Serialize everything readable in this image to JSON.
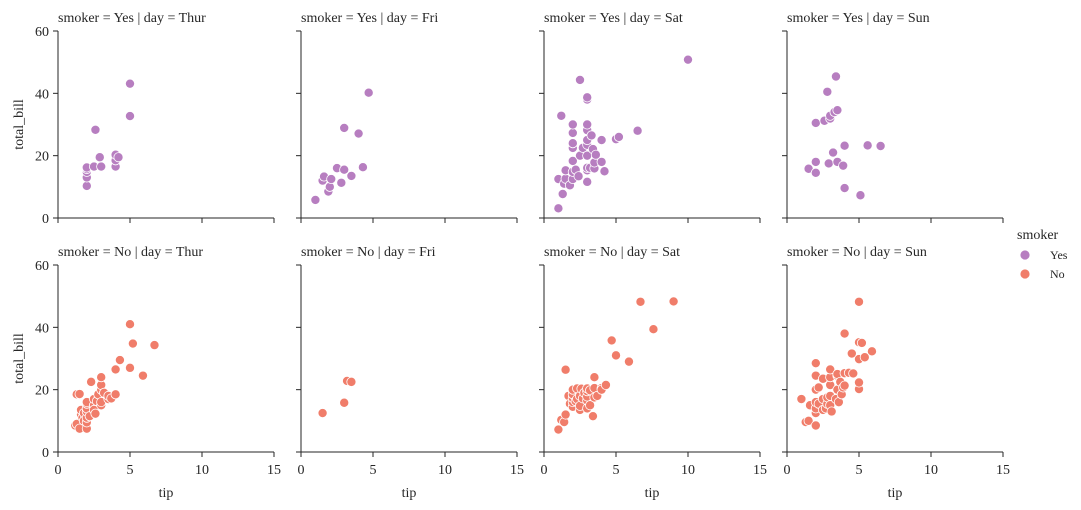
{
  "chart_data": {
    "type": "scatter",
    "layout": "facet-grid",
    "xlabel": "tip",
    "ylabel": "total_bill",
    "xlim": [
      0,
      15
    ],
    "ylim": [
      0,
      60
    ],
    "xticks": [
      0,
      5,
      10,
      15
    ],
    "yticks": [
      0,
      20,
      40,
      60
    ],
    "grid": false,
    "legend": {
      "title": "smoker",
      "placement": "right",
      "entries": [
        {
          "label": "Yes",
          "color": "#b77ec0"
        },
        {
          "label": "No",
          "color": "#f07d6a"
        }
      ]
    },
    "panels": [
      {
        "title": "smoker = Yes | day = Thur",
        "color": "#b77ec0",
        "points": [
          [
            2,
            10.3
          ],
          [
            2,
            13
          ],
          [
            2,
            14.8
          ],
          [
            2,
            15.7
          ],
          [
            2,
            16.2
          ],
          [
            2.5,
            16.5
          ],
          [
            2.6,
            28.3
          ],
          [
            3,
            16.5
          ],
          [
            2.9,
            19.5
          ],
          [
            4,
            16.5
          ],
          [
            4,
            18.5
          ],
          [
            4,
            20.3
          ],
          [
            4.2,
            19.5
          ],
          [
            5,
            32.7
          ],
          [
            5,
            43.1
          ]
        ]
      },
      {
        "title": "smoker = Yes | day = Fri",
        "color": "#b77ec0",
        "points": [
          [
            1,
            5.8
          ],
          [
            1.5,
            12
          ],
          [
            1.6,
            13.3
          ],
          [
            1.9,
            8.5
          ],
          [
            2,
            10
          ],
          [
            2.1,
            12.5
          ],
          [
            2.5,
            16
          ],
          [
            2.8,
            11.3
          ],
          [
            3,
            15.5
          ],
          [
            3,
            28.9
          ],
          [
            3.5,
            13.5
          ],
          [
            4,
            27.1
          ],
          [
            4.3,
            16.3
          ],
          [
            4.7,
            40.2
          ]
        ]
      },
      {
        "title": "smoker = Yes | day = Sat",
        "color": "#b77ec0",
        "points": [
          [
            1,
            3.1
          ],
          [
            1,
            12.5
          ],
          [
            1.2,
            32.8
          ],
          [
            1.3,
            7.7
          ],
          [
            1.4,
            11
          ],
          [
            1.5,
            12.6
          ],
          [
            1.5,
            15.3
          ],
          [
            1.8,
            10.5
          ],
          [
            2,
            12.5
          ],
          [
            2,
            14.8
          ],
          [
            2,
            18.3
          ],
          [
            2,
            22.5
          ],
          [
            2,
            24
          ],
          [
            2,
            27.3
          ],
          [
            2,
            30
          ],
          [
            2.2,
            15.5
          ],
          [
            2.4,
            13.4
          ],
          [
            2.5,
            44.3
          ],
          [
            2.5,
            20
          ],
          [
            2.7,
            22.5
          ],
          [
            3,
            11.6
          ],
          [
            3,
            15.3
          ],
          [
            3,
            16.1
          ],
          [
            3,
            20
          ],
          [
            3,
            23.5
          ],
          [
            3,
            25
          ],
          [
            3,
            28.2
          ],
          [
            3,
            30
          ],
          [
            3,
            38
          ],
          [
            3,
            38.7
          ],
          [
            3.2,
            16.1
          ],
          [
            3.3,
            26.5
          ],
          [
            3.4,
            22.1
          ],
          [
            3.5,
            15.9
          ],
          [
            3.5,
            17.8
          ],
          [
            3.6,
            20.3
          ],
          [
            4,
            18
          ],
          [
            4,
            25
          ],
          [
            4.2,
            15
          ],
          [
            5,
            25.3
          ],
          [
            5.2,
            26
          ],
          [
            6.5,
            28
          ],
          [
            10,
            50.8
          ]
        ]
      },
      {
        "title": "smoker = Yes | day = Sun",
        "color": "#b77ec0",
        "points": [
          [
            1.5,
            15.8
          ],
          [
            2,
            14.5
          ],
          [
            2,
            18
          ],
          [
            2,
            30.5
          ],
          [
            2.6,
            31.2
          ],
          [
            2.8,
            40.5
          ],
          [
            2.9,
            17.5
          ],
          [
            3,
            31.9
          ],
          [
            3,
            32.8
          ],
          [
            3.2,
            21
          ],
          [
            3.3,
            34
          ],
          [
            3.4,
            45.4
          ],
          [
            3.5,
            18
          ],
          [
            3.5,
            34.6
          ],
          [
            3.9,
            16.8
          ],
          [
            4,
            9.6
          ],
          [
            4,
            23.2
          ],
          [
            5.1,
            7.3
          ],
          [
            5.6,
            23.3
          ],
          [
            6.5,
            23.1
          ]
        ]
      },
      {
        "title": "smoker = No | day = Thur",
        "color": "#f07d6a",
        "points": [
          [
            1.2,
            8.5
          ],
          [
            1.3,
            18.5
          ],
          [
            1.3,
            9
          ],
          [
            1.5,
            7.5
          ],
          [
            1.5,
            18.6
          ],
          [
            1.6,
            12
          ],
          [
            1.6,
            13.5
          ],
          [
            1.7,
            11
          ],
          [
            1.8,
            10
          ],
          [
            1.8,
            12.5
          ],
          [
            2,
            7.5
          ],
          [
            2,
            9.5
          ],
          [
            2,
            11
          ],
          [
            2,
            13
          ],
          [
            2,
            14
          ],
          [
            2,
            15.5
          ],
          [
            2,
            16
          ],
          [
            2.2,
            11.5
          ],
          [
            2.3,
            22.5
          ],
          [
            2.5,
            15
          ],
          [
            2.5,
            13.5
          ],
          [
            2.5,
            17
          ],
          [
            2.6,
            12.3
          ],
          [
            2.7,
            16.3
          ],
          [
            2.8,
            18.5
          ],
          [
            3,
            15
          ],
          [
            3,
            16
          ],
          [
            3,
            20
          ],
          [
            3,
            21.5
          ],
          [
            3,
            24
          ],
          [
            3.2,
            19
          ],
          [
            3.5,
            17
          ],
          [
            3.5,
            18
          ],
          [
            3.7,
            17.2
          ],
          [
            4,
            18.5
          ],
          [
            4,
            26.5
          ],
          [
            4.3,
            29.5
          ],
          [
            5,
            27
          ],
          [
            5,
            41
          ],
          [
            5.2,
            34.8
          ],
          [
            5.9,
            24.5
          ],
          [
            6.7,
            34.3
          ]
        ]
      },
      {
        "title": "smoker = No | day = Fri",
        "color": "#f07d6a",
        "points": [
          [
            1.5,
            12.5
          ],
          [
            3,
            15.8
          ],
          [
            3.2,
            22.8
          ],
          [
            3.5,
            22.5
          ]
        ]
      },
      {
        "title": "smoker = No | day = Sat",
        "color": "#f07d6a",
        "points": [
          [
            1,
            7.2
          ],
          [
            1.2,
            10.3
          ],
          [
            1.4,
            9.6
          ],
          [
            1.5,
            26.4
          ],
          [
            1.5,
            12
          ],
          [
            1.7,
            18
          ],
          [
            1.8,
            15.5
          ],
          [
            2,
            14.5
          ],
          [
            2,
            16
          ],
          [
            2,
            17.3
          ],
          [
            2,
            18.5
          ],
          [
            2,
            20
          ],
          [
            2.2,
            16.3
          ],
          [
            2.3,
            17
          ],
          [
            2.3,
            20.4
          ],
          [
            2.5,
            13.5
          ],
          [
            2.5,
            14.8
          ],
          [
            2.5,
            18
          ],
          [
            2.6,
            20.3
          ],
          [
            2.7,
            17.2
          ],
          [
            2.8,
            19
          ],
          [
            3,
            14
          ],
          [
            3,
            16.5
          ],
          [
            3,
            17.8
          ],
          [
            3,
            19.5
          ],
          [
            3,
            20.4
          ],
          [
            3.2,
            15
          ],
          [
            3.2,
            19.8
          ],
          [
            3.4,
            11.5
          ],
          [
            3.5,
            17.5
          ],
          [
            3.5,
            20.5
          ],
          [
            3.5,
            24
          ],
          [
            3.7,
            18
          ],
          [
            4,
            20.5
          ],
          [
            4,
            20
          ],
          [
            4.3,
            21.5
          ],
          [
            4.7,
            35.8
          ],
          [
            5,
            31
          ],
          [
            5.9,
            29
          ],
          [
            6.7,
            48.2
          ],
          [
            7.6,
            39.4
          ],
          [
            9,
            48.3
          ]
        ]
      },
      {
        "title": "smoker = No | day = Sun",
        "color": "#f07d6a",
        "points": [
          [
            1,
            17
          ],
          [
            1.3,
            9.6
          ],
          [
            1.5,
            10
          ],
          [
            1.6,
            15
          ],
          [
            2,
            8.5
          ],
          [
            2,
            12.5
          ],
          [
            2,
            14
          ],
          [
            2,
            16
          ],
          [
            2,
            20
          ],
          [
            2,
            24.5
          ],
          [
            2,
            28.5
          ],
          [
            2.2,
            15.5
          ],
          [
            2.2,
            20.7
          ],
          [
            2.5,
            13.5
          ],
          [
            2.5,
            17
          ],
          [
            2.5,
            23.5
          ],
          [
            2.7,
            14
          ],
          [
            2.8,
            15.5
          ],
          [
            2.8,
            17.5
          ],
          [
            3,
            15
          ],
          [
            3,
            18
          ],
          [
            3,
            21.5
          ],
          [
            3,
            24
          ],
          [
            3,
            26.5
          ],
          [
            3.1,
            13
          ],
          [
            3.4,
            17
          ],
          [
            3.5,
            20
          ],
          [
            3.5,
            24.5
          ],
          [
            3.5,
            25
          ],
          [
            3.6,
            16
          ],
          [
            3.7,
            22.5
          ],
          [
            3.8,
            18.5
          ],
          [
            3.9,
            20.7
          ],
          [
            4,
            21.3
          ],
          [
            4,
            25.3
          ],
          [
            4,
            38
          ],
          [
            4.3,
            25.4
          ],
          [
            4.5,
            31.6
          ],
          [
            4.6,
            25.2
          ],
          [
            5,
            20.2
          ],
          [
            5,
            22.3
          ],
          [
            5,
            29.8
          ],
          [
            5,
            35.2
          ],
          [
            5.2,
            35
          ],
          [
            5.4,
            30.4
          ],
          [
            5.9,
            32.3
          ],
          [
            5,
            48.2
          ]
        ]
      }
    ]
  }
}
